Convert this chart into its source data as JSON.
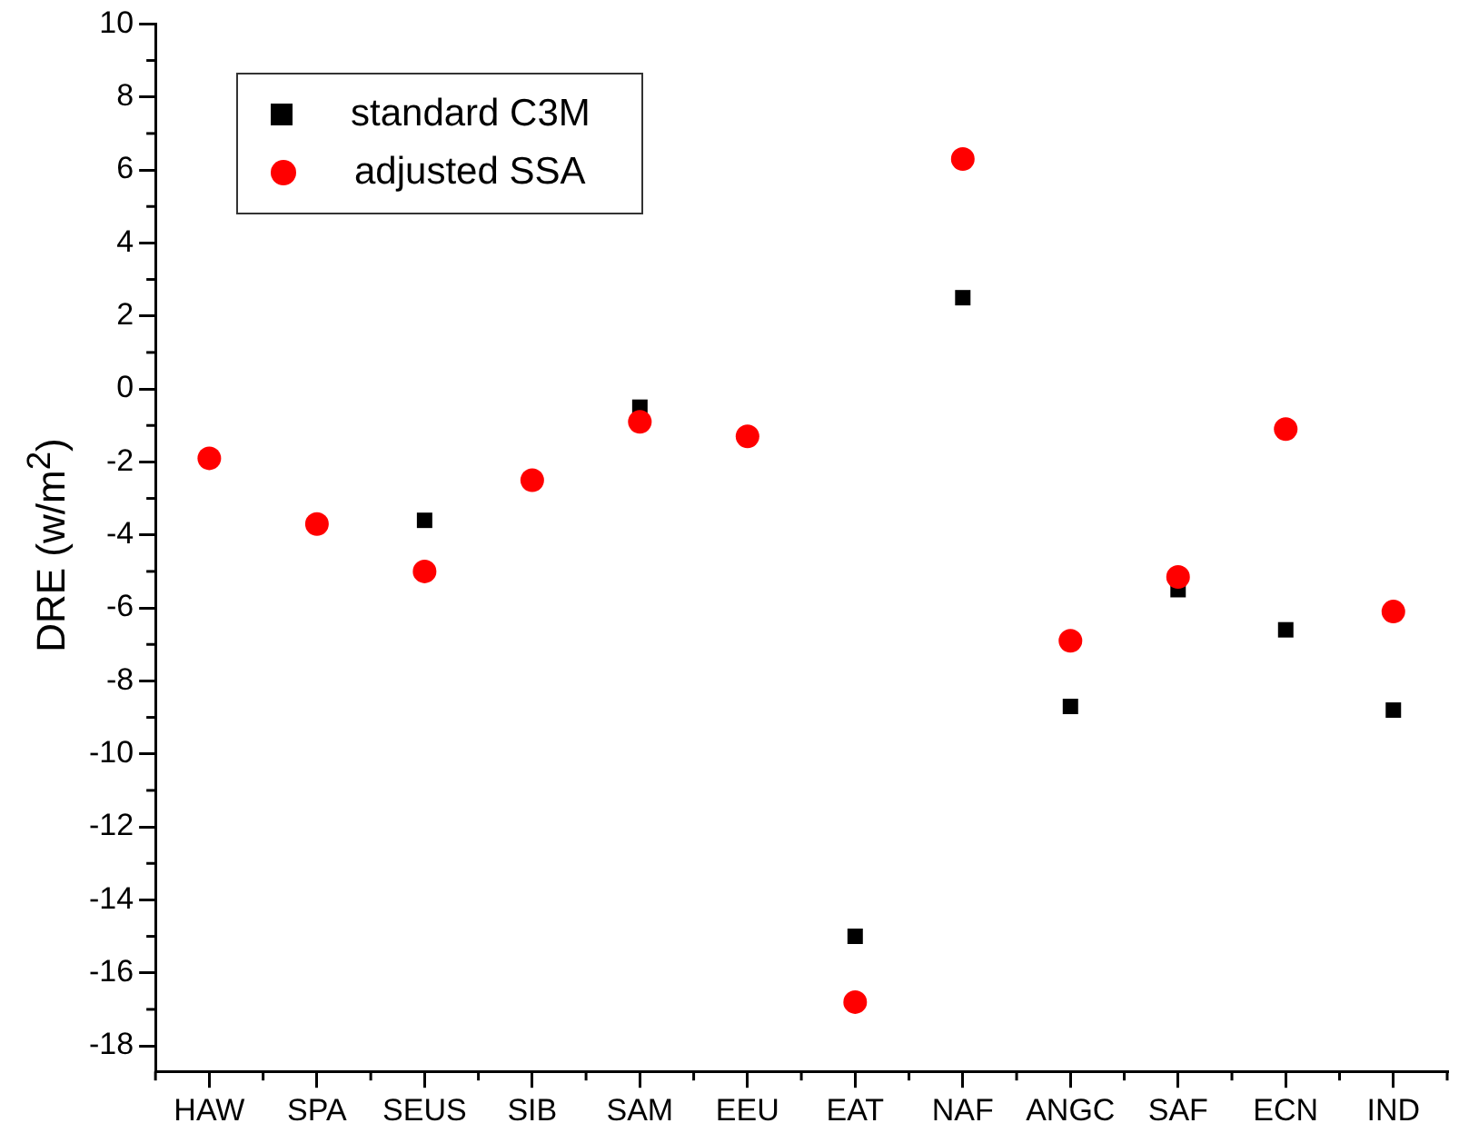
{
  "chart_data": {
    "type": "scatter",
    "ylabel": "DRE (w/m$^{2}$)",
    "categories": [
      "HAW",
      "SPA",
      "SEUS",
      "SIB",
      "SAM",
      "EEU",
      "EAT",
      "NAF",
      "ANGC",
      "SAF",
      "ECN",
      "IND"
    ],
    "series": [
      {
        "name": "standard C3M",
        "color": "#000000",
        "marker": "square",
        "values": [
          null,
          null,
          -3.6,
          null,
          -0.5,
          null,
          -15.0,
          2.5,
          -8.7,
          -5.5,
          -6.6,
          -8.8
        ]
      },
      {
        "name": "adjusted SSA",
        "color": "#ff0000",
        "marker": "circle",
        "values": [
          -1.9,
          -3.7,
          -5.0,
          -2.5,
          -0.9,
          -1.3,
          -16.8,
          6.3,
          -6.9,
          -5.15,
          -1.1,
          -6.1
        ]
      }
    ],
    "ylim": [
      -18.7,
      10
    ],
    "yticks": [
      -18,
      {
        "value": -17,
        "label": null
      },
      -16,
      {
        "value": -15,
        "label": null
      },
      -14,
      {
        "value": -13,
        "label": null
      },
      -12,
      {
        "value": -11,
        "label": null
      },
      -10,
      {
        "value": -9,
        "label": null
      },
      -8,
      {
        "value": -7,
        "label": null
      },
      -6,
      {
        "value": -5,
        "label": null
      },
      -4,
      {
        "value": -3,
        "label": null
      },
      -2,
      {
        "value": -1,
        "label": null
      },
      0,
      {
        "value": 1,
        "label": null
      },
      2,
      {
        "value": 3,
        "label": null
      },
      4,
      {
        "value": 5,
        "label": null
      },
      6,
      {
        "value": 7,
        "label": null
      },
      8,
      {
        "value": 9,
        "label": null
      },
      10
    ],
    "grid": false,
    "legend": "top left"
  }
}
